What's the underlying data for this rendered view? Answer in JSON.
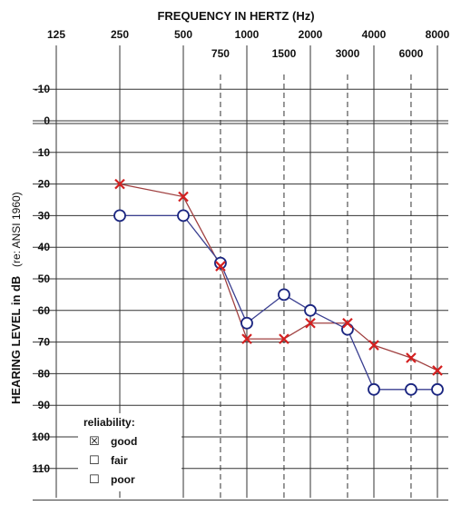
{
  "chart_data": {
    "type": "line",
    "title": "FREQUENCY IN HERTZ (Hz)",
    "ylabel": "HEARING LEVEL in dB",
    "ylabel_note": "(re: ANSI 1960)",
    "x_octave_ticks": [
      125,
      250,
      500,
      1000,
      2000,
      4000,
      8000
    ],
    "x_mid_ticks": [
      750,
      1500,
      3000,
      6000
    ],
    "x_octave_labels": [
      "125",
      "250",
      "500",
      "1000",
      "2000",
      "4000",
      "8000"
    ],
    "x_mid_labels": [
      "750",
      "1500",
      "3000",
      "6000"
    ],
    "y_ticks": [
      -10,
      0,
      10,
      20,
      30,
      40,
      50,
      60,
      70,
      80,
      90,
      100,
      110
    ],
    "y_tick_labels": [
      "-10",
      "0",
      "10",
      "20",
      "30",
      "40",
      "50",
      "60",
      "70",
      "80",
      "90",
      "100",
      "110"
    ],
    "ylim": [
      -10,
      120
    ],
    "y_inverted": true,
    "x_scale": "log",
    "series": [
      {
        "marker": "x",
        "color": "#d42020",
        "line_color": "#a04040",
        "x": [
          250,
          500,
          750,
          1000,
          1500,
          2000,
          3000,
          4000,
          6000,
          8000
        ],
        "y": [
          20,
          24,
          46,
          69,
          69,
          64,
          64,
          71,
          75,
          79
        ]
      },
      {
        "marker": "o",
        "color": "#1a2580",
        "line_color": "#3a3f90",
        "x": [
          250,
          500,
          750,
          1000,
          1500,
          2000,
          3000,
          4000,
          6000,
          8000
        ],
        "y": [
          30,
          30,
          45,
          64,
          55,
          60,
          66,
          85,
          85,
          85
        ]
      }
    ]
  },
  "reliability": {
    "heading": "reliability:",
    "options": [
      {
        "box": "☒",
        "label": "good"
      },
      {
        "box": "☐",
        "label": "fair"
      },
      {
        "box": "☐",
        "label": "poor"
      }
    ]
  }
}
